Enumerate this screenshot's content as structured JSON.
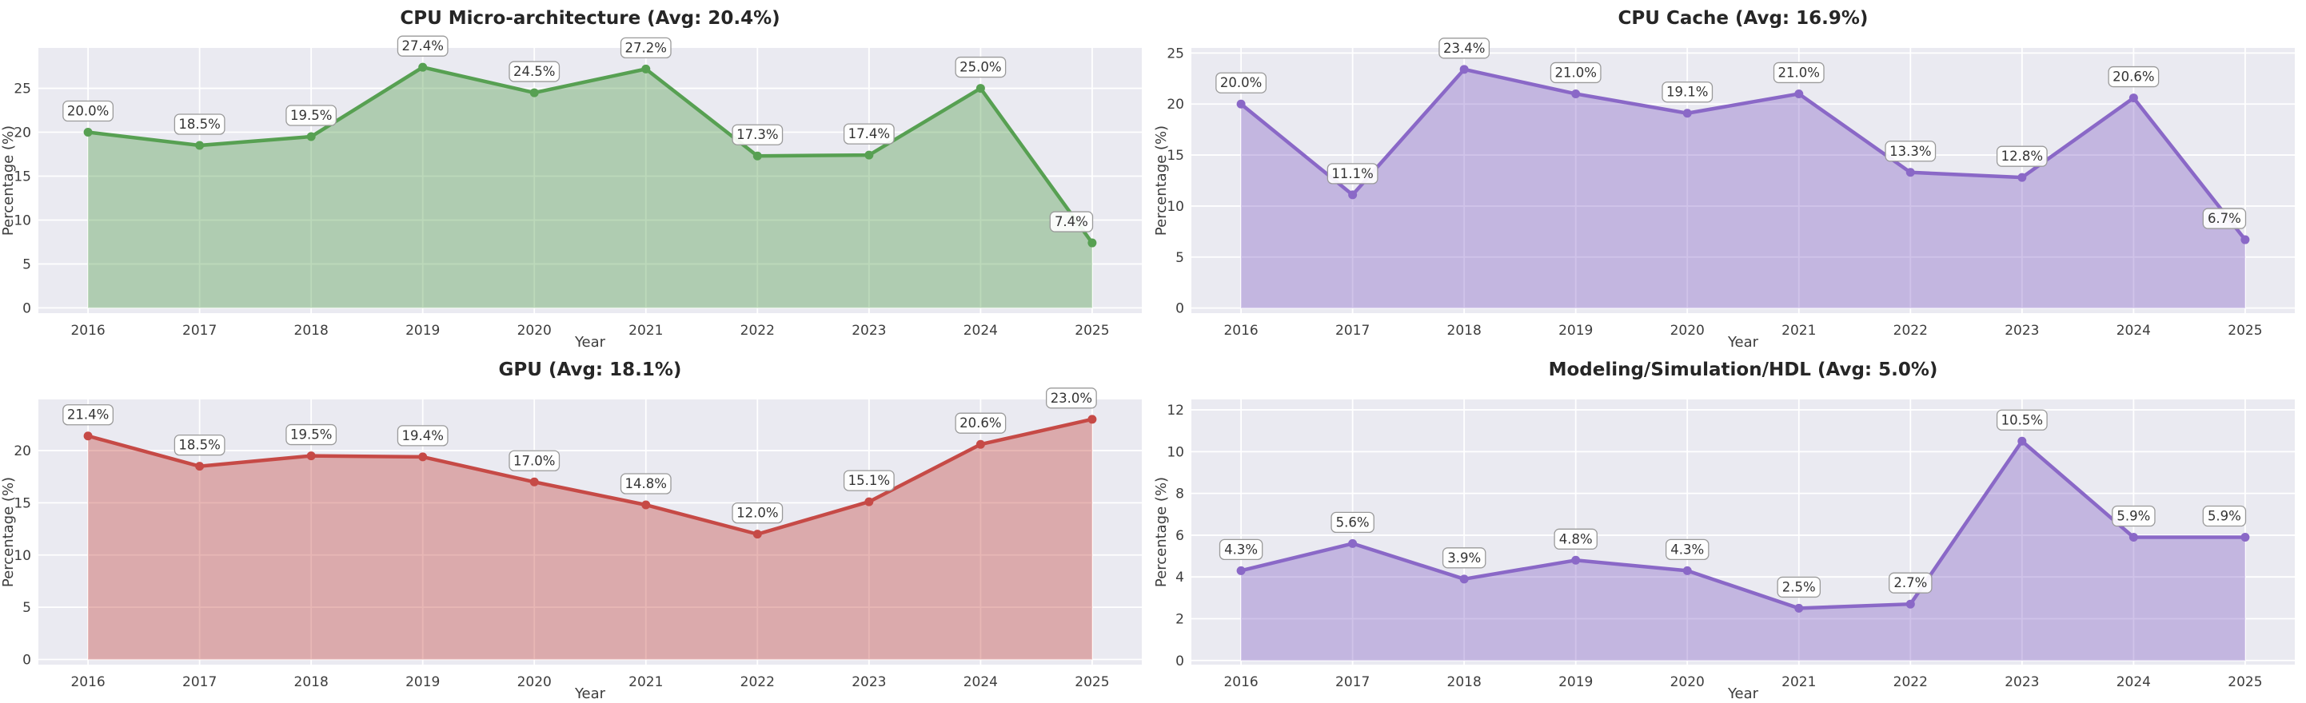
{
  "figure": {
    "background": "#ffffff",
    "plot_background": "#eaeaf1",
    "grid_color": "#ffffff",
    "tick_color": "#3d3d3d",
    "title_color": "#262626",
    "label_text_color": "#333333",
    "label_box_fill": "#ffffff",
    "label_box_border": "#9a9a9a"
  },
  "chart_data": [
    {
      "type": "area",
      "title": "CPU Micro-architecture (Avg: 20.4%)",
      "average_label": "Avg: 20.4%",
      "color": "#57a052",
      "x": [
        "2016",
        "2017",
        "2018",
        "2019",
        "2020",
        "2021",
        "2022",
        "2023",
        "2024",
        "2025"
      ],
      "values": [
        20.0,
        18.5,
        19.5,
        27.4,
        24.5,
        27.2,
        17.3,
        17.4,
        25.0,
        7.4
      ],
      "point_labels": [
        "20.0%",
        "18.5%",
        "19.5%",
        "27.4%",
        "24.5%",
        "27.2%",
        "17.3%",
        "17.4%",
        "25.0%",
        "7.4%"
      ],
      "xlabel": "Year",
      "ylabel": "Percentage (%)",
      "yticks": [
        0,
        5,
        10,
        15,
        20,
        25
      ],
      "ylim": [
        -0.6,
        29.6
      ],
      "grid": true,
      "legend": "none"
    },
    {
      "type": "area",
      "title": "CPU Cache (Avg: 16.9%)",
      "average_label": "Avg: 16.9%",
      "color": "#8a68c7",
      "x": [
        "2016",
        "2017",
        "2018",
        "2019",
        "2020",
        "2021",
        "2022",
        "2023",
        "2024",
        "2025"
      ],
      "values": [
        20.0,
        11.1,
        23.4,
        21.0,
        19.1,
        21.0,
        13.3,
        12.8,
        20.6,
        6.7
      ],
      "point_labels": [
        "20.0%",
        "11.1%",
        "23.4%",
        "21.0%",
        "19.1%",
        "21.0%",
        "13.3%",
        "12.8%",
        "20.6%",
        "6.7%"
      ],
      "xlabel": "Year",
      "ylabel": "Percentage (%)",
      "yticks": [
        0,
        5,
        10,
        15,
        20,
        25
      ],
      "ylim": [
        -0.5,
        25.5
      ],
      "grid": true,
      "legend": "none"
    },
    {
      "type": "area",
      "title": "GPU (Avg: 18.1%)",
      "average_label": "Avg: 18.1%",
      "color": "#c64a46",
      "x": [
        "2016",
        "2017",
        "2018",
        "2019",
        "2020",
        "2021",
        "2022",
        "2023",
        "2024",
        "2025"
      ],
      "values": [
        21.4,
        18.5,
        19.5,
        19.4,
        17.0,
        14.8,
        12.0,
        15.1,
        20.6,
        23.0
      ],
      "point_labels": [
        "21.4%",
        "18.5%",
        "19.5%",
        "19.4%",
        "17.0%",
        "14.8%",
        "12.0%",
        "15.1%",
        "20.6%",
        "23.0%"
      ],
      "xlabel": "Year",
      "ylabel": "Percentage (%)",
      "yticks": [
        0,
        5,
        10,
        15,
        20
      ],
      "ylim": [
        -0.5,
        24.9
      ],
      "grid": true,
      "legend": "none"
    },
    {
      "type": "area",
      "title": "Modeling/Simulation/HDL (Avg: 5.0%)",
      "average_label": "Avg: 5.0%",
      "color": "#8a68c7",
      "x": [
        "2016",
        "2017",
        "2018",
        "2019",
        "2020",
        "2021",
        "2022",
        "2023",
        "2024",
        "2025"
      ],
      "values": [
        4.3,
        5.6,
        3.9,
        4.8,
        4.3,
        2.5,
        2.7,
        10.5,
        5.9,
        5.9
      ],
      "point_labels": [
        "4.3%",
        "5.6%",
        "3.9%",
        "4.8%",
        "4.3%",
        "2.5%",
        "2.7%",
        "10.5%",
        "5.9%",
        "5.9%"
      ],
      "xlabel": "Year",
      "ylabel": "Percentage (%)",
      "yticks": [
        0,
        2,
        4,
        6,
        8,
        10,
        12
      ],
      "ylim": [
        -0.2,
        12.5
      ],
      "grid": true,
      "legend": "none"
    }
  ]
}
